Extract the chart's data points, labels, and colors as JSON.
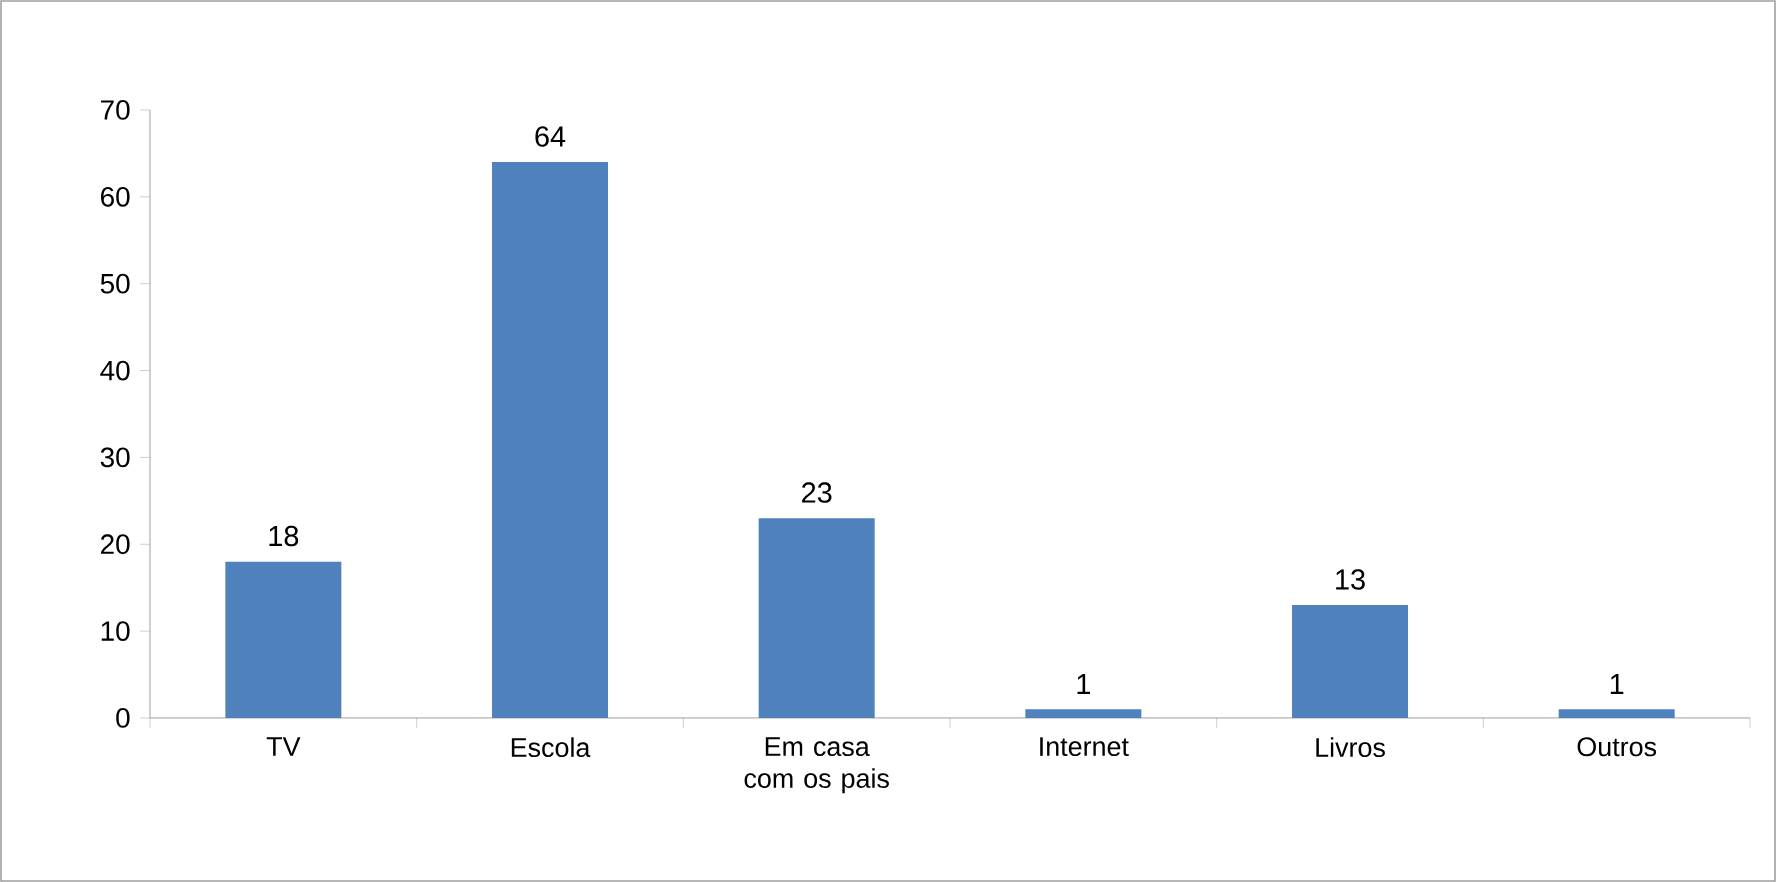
{
  "chart_data": {
    "type": "bar",
    "categories": [
      "TV",
      "Escola",
      "Em casa com os pais",
      "Internet",
      "Livros",
      "Outros"
    ],
    "values": [
      18,
      64,
      23,
      1,
      13,
      1
    ],
    "color": "#4f81bd",
    "ylim": [
      0,
      70
    ],
    "yticks": [
      0,
      10,
      20,
      30,
      40,
      50,
      60,
      70
    ],
    "data_labels": true,
    "grid": false
  }
}
